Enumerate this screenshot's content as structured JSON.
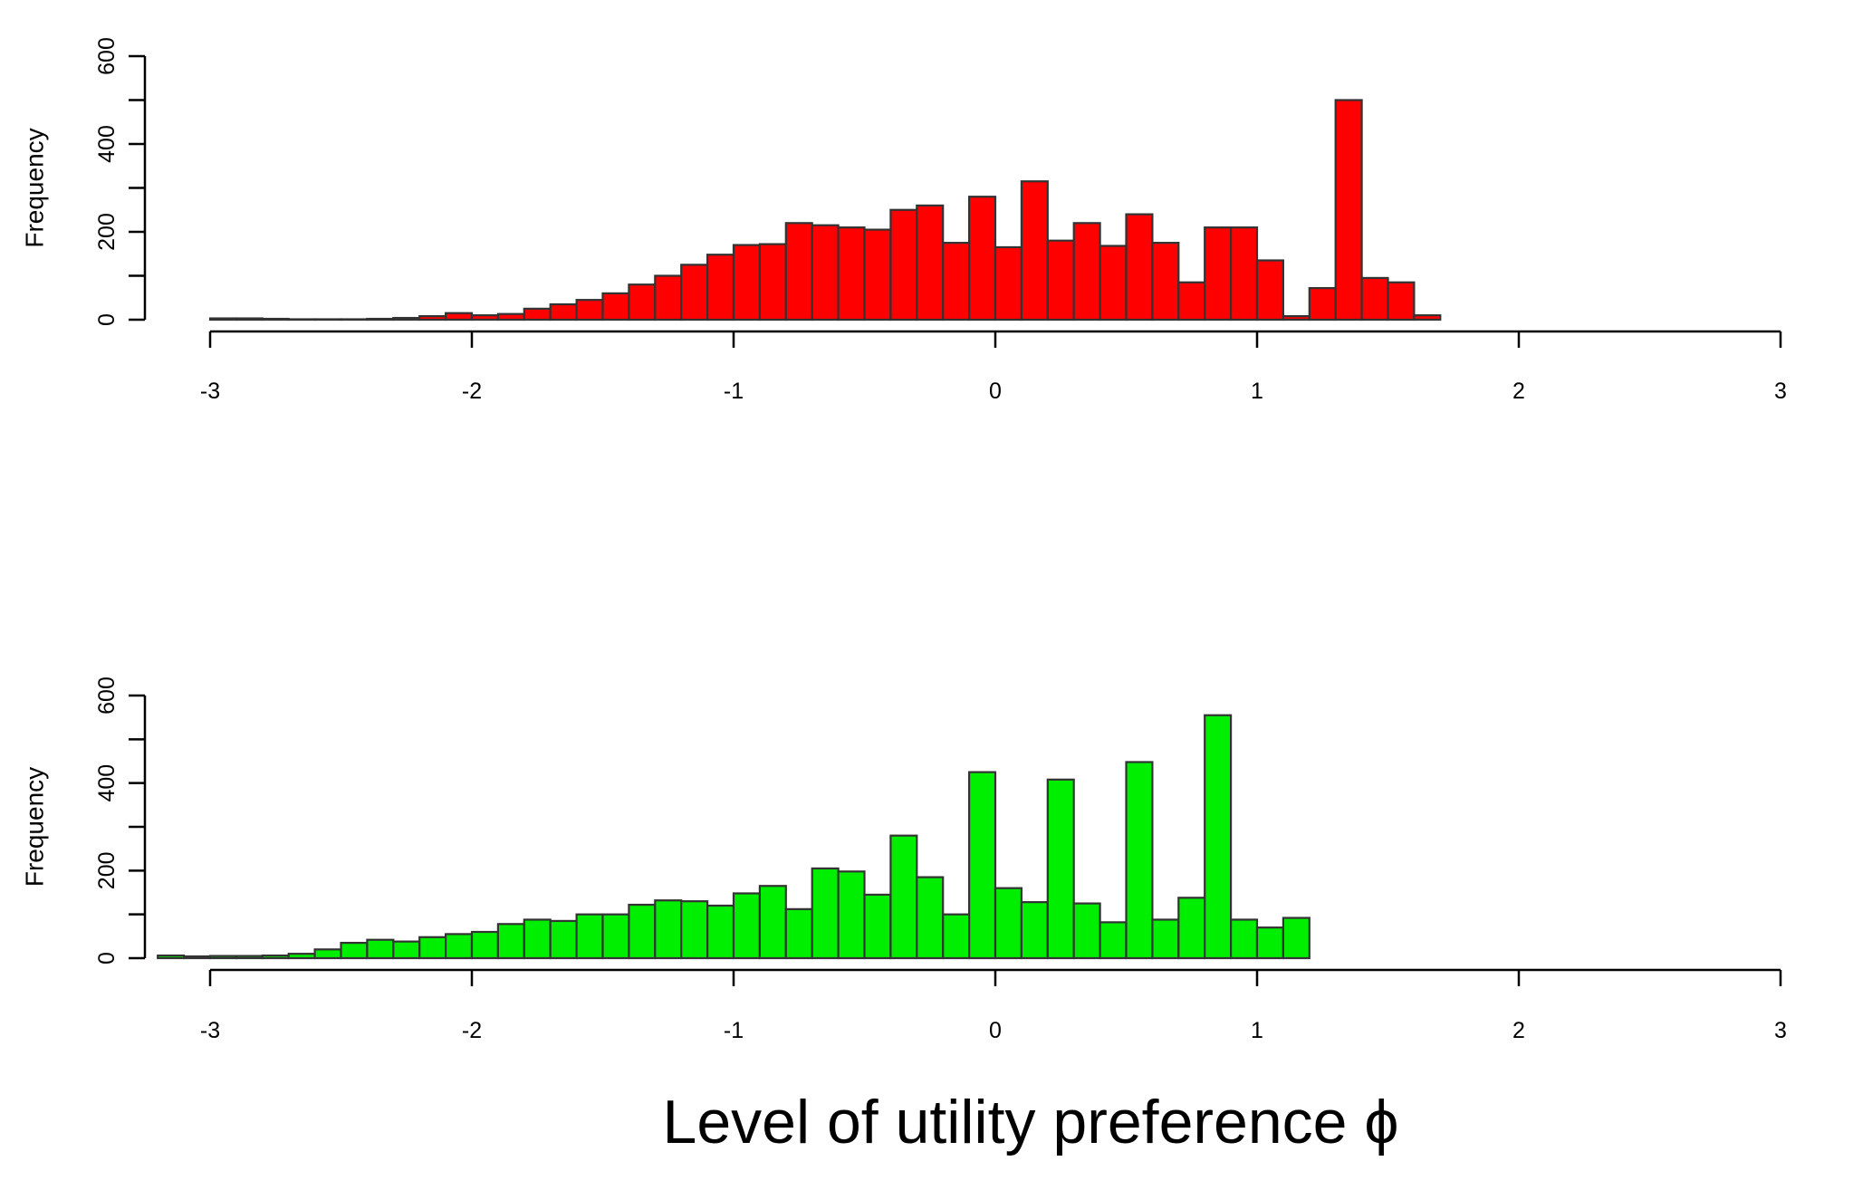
{
  "chart_data": [
    {
      "type": "bar",
      "color": "#ff0000",
      "ylabel": "Frequency",
      "xlim": [
        -3,
        3
      ],
      "ylim": [
        0,
        600
      ],
      "xticks": [
        -3,
        -2,
        -1,
        0,
        1,
        2,
        3
      ],
      "yticks": [
        0,
        200,
        400,
        600
      ],
      "bin_width": 0.1,
      "bin_start": -3.0,
      "values": [
        3,
        3,
        2,
        1,
        1,
        1,
        2,
        4,
        8,
        15,
        10,
        13,
        25,
        35,
        45,
        60,
        80,
        100,
        125,
        148,
        170,
        172,
        220,
        215,
        210,
        205,
        250,
        260,
        175,
        280,
        165,
        315,
        180,
        220,
        168,
        240,
        175,
        85,
        210,
        210,
        135,
        8,
        72,
        500,
        95,
        85,
        10
      ]
    },
    {
      "type": "bar",
      "color": "#00ee00",
      "ylabel": "Frequency",
      "xlim": [
        -3,
        3
      ],
      "ylim": [
        0,
        600
      ],
      "xticks": [
        -3,
        -2,
        -1,
        0,
        1,
        2,
        3
      ],
      "yticks": [
        0,
        200,
        400,
        600
      ],
      "bin_width": 0.1,
      "bin_start": -3.2,
      "values": [
        6,
        4,
        5,
        5,
        6,
        10,
        20,
        35,
        42,
        38,
        48,
        55,
        60,
        78,
        88,
        85,
        100,
        100,
        122,
        132,
        130,
        120,
        148,
        165,
        112,
        205,
        198,
        145,
        280,
        185,
        100,
        425,
        160,
        128,
        408,
        125,
        82,
        448,
        88,
        138,
        555,
        88,
        70,
        92
      ]
    }
  ],
  "caption": "Level of utility preference ϕ"
}
